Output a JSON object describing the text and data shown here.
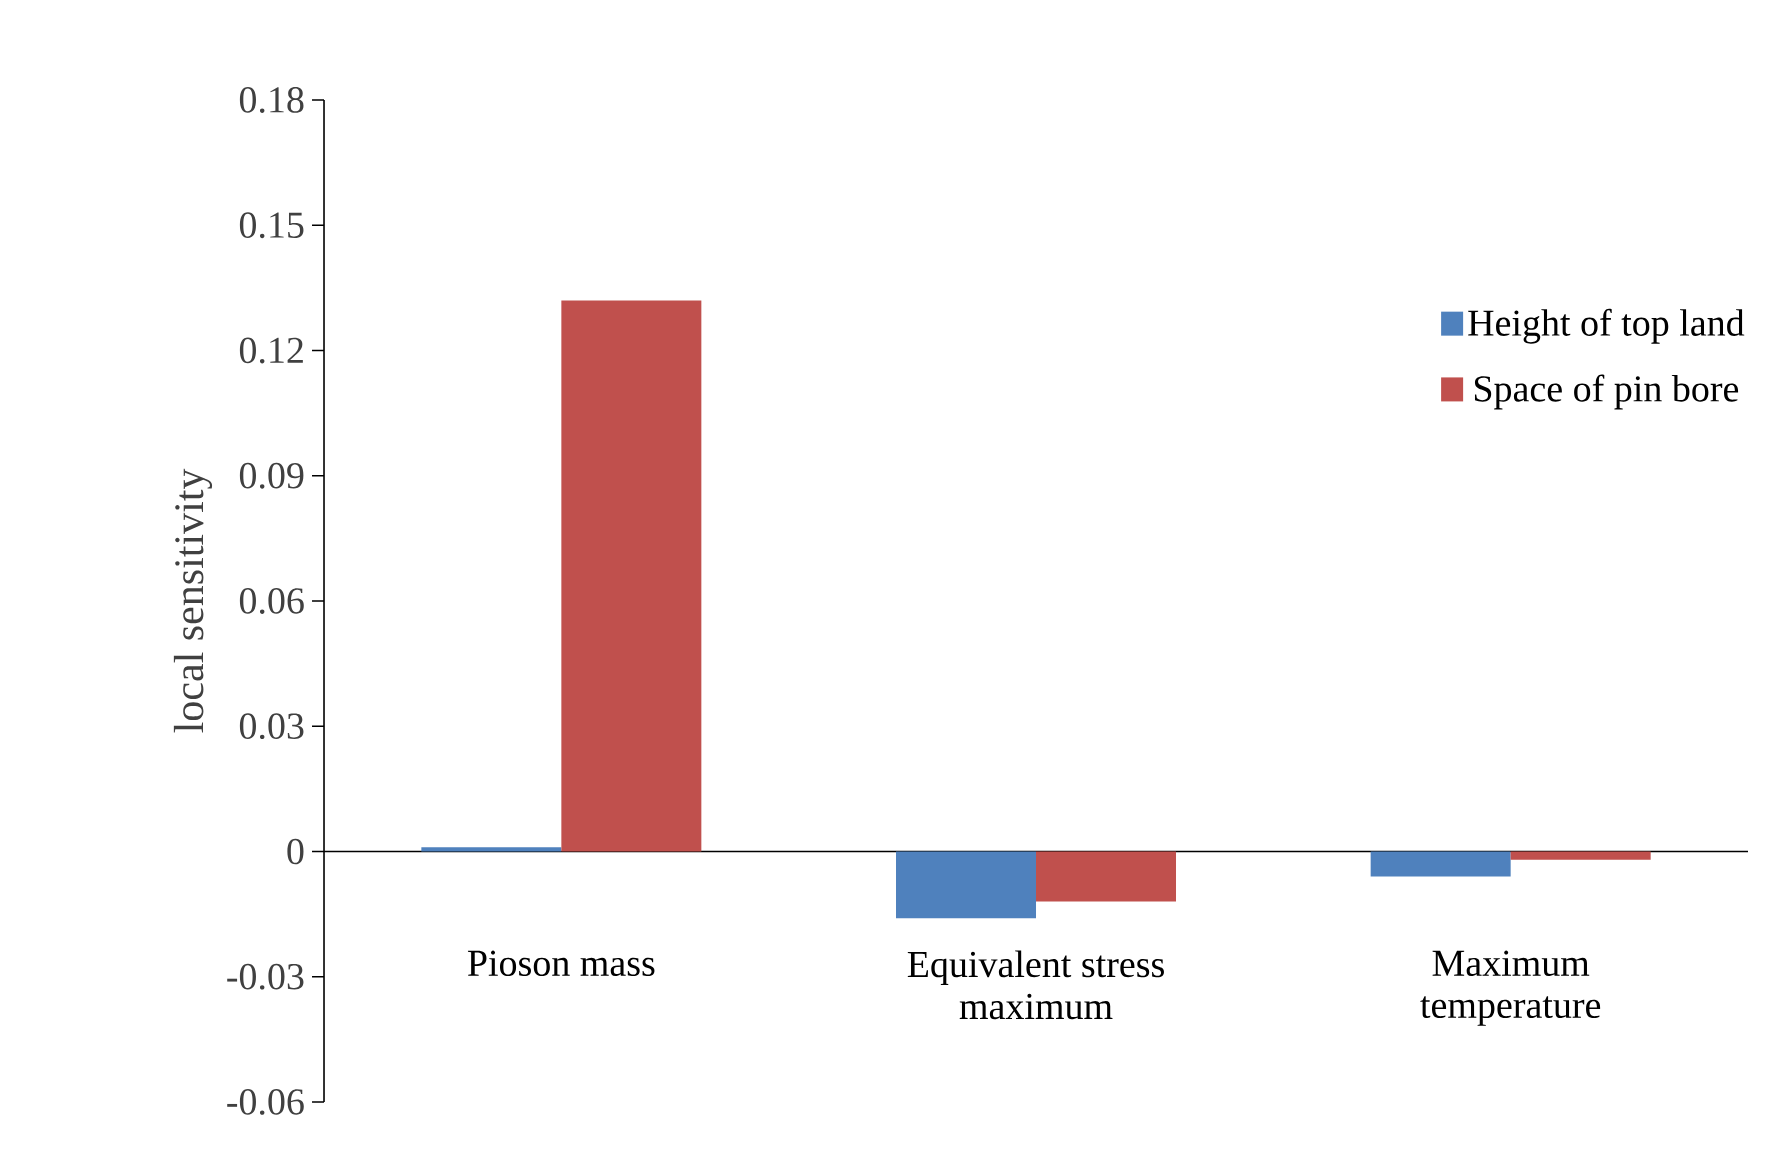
{
  "chart_data": {
    "type": "bar",
    "ylabel": "local sensitivity",
    "categories": [
      "Pioson mass",
      "Equivalent stress maximum",
      "Maximum temperature"
    ],
    "series": [
      {
        "name": "Height of top land",
        "color": "#4f81bd",
        "values": [
          0.001,
          -0.016,
          -0.006
        ]
      },
      {
        "name": "Space of pin bore",
        "color": "#c0504d",
        "values": [
          0.132,
          -0.012,
          -0.002
        ]
      }
    ],
    "ylim": [
      -0.06,
      0.18
    ],
    "yticks": [
      -0.06,
      -0.03,
      0,
      0.03,
      0.06,
      0.09,
      0.12,
      0.15,
      0.18
    ],
    "legend": "top right"
  }
}
